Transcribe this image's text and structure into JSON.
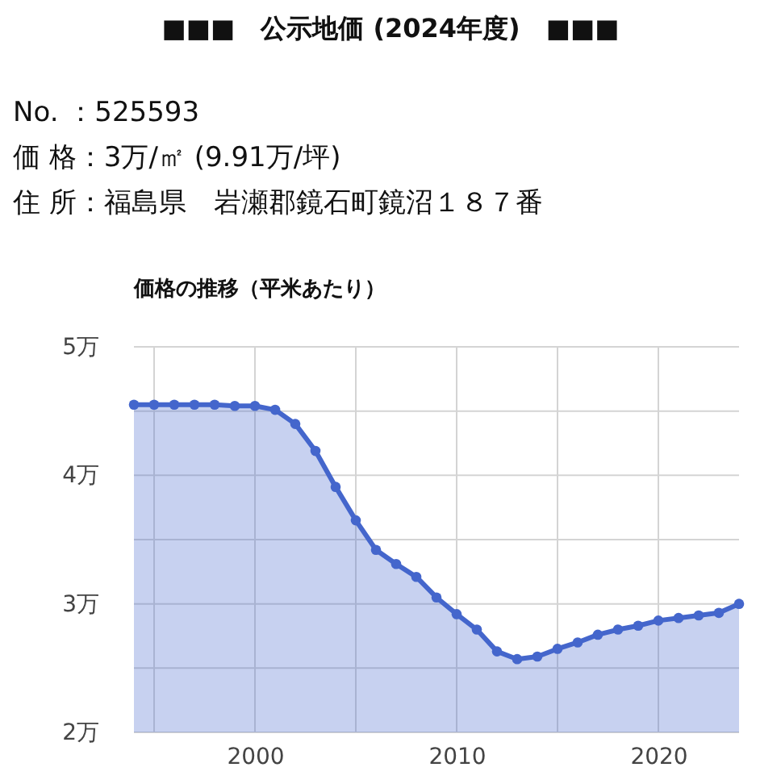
{
  "chart_data": {
    "type": "area",
    "title": "■■■　公示地価 (2024年度)　■■■",
    "subtitle": "価格の推移（平米あたり）",
    "annotations": [
      "No. ：525593",
      "価 格：3万/㎡ (9.91万/坪)",
      "住 所：福島県　岩瀬郡鏡石町鏡沼１８７番"
    ],
    "x": [
      1994,
      1995,
      1996,
      1997,
      1998,
      1999,
      2000,
      2001,
      2002,
      2003,
      2004,
      2005,
      2006,
      2007,
      2008,
      2009,
      2010,
      2011,
      2012,
      2013,
      2014,
      2015,
      2016,
      2017,
      2018,
      2019,
      2020,
      2021,
      2022,
      2023,
      2024
    ],
    "series": [
      {
        "color": "#4466cc",
        "values": [
          4.55,
          4.55,
          4.55,
          4.55,
          4.55,
          4.54,
          4.54,
          4.51,
          4.4,
          4.19,
          3.91,
          3.65,
          3.42,
          3.31,
          3.21,
          3.05,
          2.92,
          2.8,
          2.63,
          2.57,
          2.59,
          2.65,
          2.7,
          2.76,
          2.8,
          2.83,
          2.87,
          2.89,
          2.91,
          2.93,
          3.0
        ]
      }
    ],
    "xlim": [
      1994,
      2024
    ],
    "xticks": [
      {
        "value": 1995,
        "label": null
      },
      2000,
      {
        "value": 2005,
        "label": null
      },
      2010,
      {
        "value": 2015,
        "label": null
      },
      2020
    ],
    "ylim": [
      2,
      5
    ],
    "yticks": [
      {
        "value": 2,
        "label": "2万"
      },
      {
        "value": 2.5,
        "label": null
      },
      {
        "value": 3,
        "label": "3万"
      },
      {
        "value": 3.5,
        "label": null
      },
      {
        "value": 4,
        "label": "4万"
      },
      {
        "value": 4.5,
        "label": null
      },
      {
        "value": 5,
        "label": "5万"
      }
    ],
    "grid": true,
    "marker": "circle",
    "line_style": "solid"
  }
}
